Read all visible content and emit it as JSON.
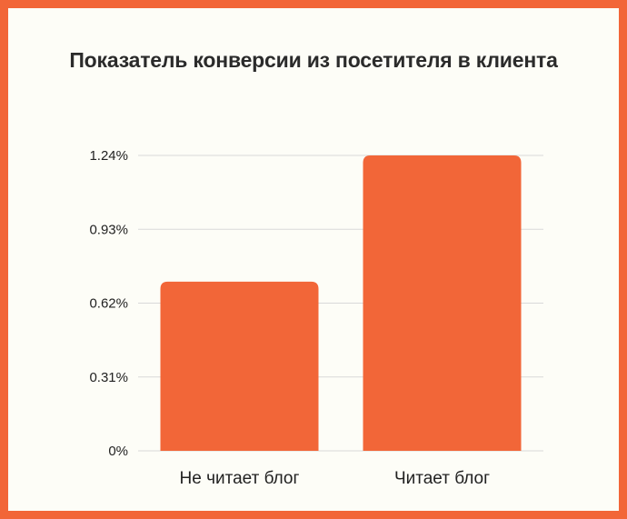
{
  "chart_data": {
    "type": "bar",
    "title": "Показатель конверсии из посетителя в клиента",
    "categories": [
      "Не читает блог",
      "Читает блог"
    ],
    "values": [
      0.71,
      1.24
    ],
    "value_unit": "%",
    "y_ticks": [
      "0%",
      "0.31%",
      "0.62%",
      "0.93%",
      "1.24%"
    ],
    "ylim": [
      0,
      1.24
    ],
    "grid": true,
    "bar_color": "#f26638",
    "frame_color": "#f26638",
    "background_color": "#fdfdf7",
    "gridline_color": "#d9d9d9"
  }
}
